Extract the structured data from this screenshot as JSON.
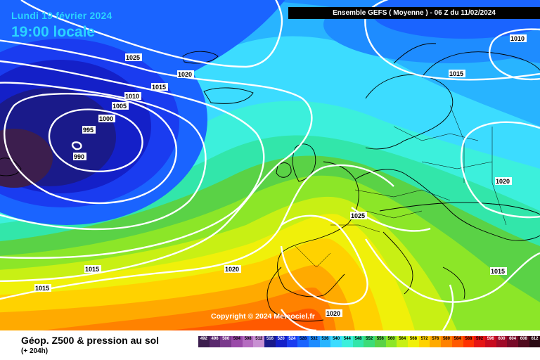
{
  "header": {
    "date": "Lundi 19 février 2024",
    "local_time": "19:00 locale",
    "model_run": "Ensemble GEFS  ( Moyenne )  -  06 Z du 11/02/2024"
  },
  "copyright": "Copyright © 2024 Meteociel.fr",
  "footer": {
    "field_title": "Géop. Z500 & pression au sol",
    "lead_time": "(+ 204h)"
  },
  "color_scale": [
    {
      "label": "492",
      "color": "#3c1e4e"
    },
    {
      "label": "496",
      "color": "#5a2a6e"
    },
    {
      "label": "500",
      "color": "#7a3a8c"
    },
    {
      "label": "504",
      "color": "#9a4aa8"
    },
    {
      "label": "508",
      "color": "#b56cc0"
    },
    {
      "label": "512",
      "color": "#c890d2"
    },
    {
      "label": "516",
      "color": "#1a1a8a"
    },
    {
      "label": "520",
      "color": "#1420c8"
    },
    {
      "label": "524",
      "color": "#1a3cf0"
    },
    {
      "label": "528",
      "color": "#1a64ff"
    },
    {
      "label": "532",
      "color": "#1e8cff"
    },
    {
      "label": "536",
      "color": "#28b4ff"
    },
    {
      "label": "540",
      "color": "#3cdcff"
    },
    {
      "label": "544",
      "color": "#3cf0dc"
    },
    {
      "label": "548",
      "color": "#32e6aa"
    },
    {
      "label": "552",
      "color": "#3cdc78"
    },
    {
      "label": "556",
      "color": "#5ad246"
    },
    {
      "label": "560",
      "color": "#8ce628"
    },
    {
      "label": "564",
      "color": "#c8f014"
    },
    {
      "label": "568",
      "color": "#f0f00a"
    },
    {
      "label": "572",
      "color": "#ffd200"
    },
    {
      "label": "576",
      "color": "#ffaa00"
    },
    {
      "label": "580",
      "color": "#ff8200"
    },
    {
      "label": "584",
      "color": "#ff5a00"
    },
    {
      "label": "588",
      "color": "#ff3200"
    },
    {
      "label": "592",
      "color": "#e61414"
    },
    {
      "label": "596",
      "color": "#c80a1e"
    },
    {
      "label": "600",
      "color": "#a00a28"
    },
    {
      "label": "604",
      "color": "#780a28"
    },
    {
      "label": "608",
      "color": "#500a1e"
    },
    {
      "label": "612",
      "color": "#2a0a14"
    }
  ],
  "isobar_labels": [
    "1025",
    "1020",
    "1015",
    "1010",
    "1005",
    "1000",
    "995",
    "990",
    "1010",
    "1015",
    "1020",
    "1025",
    "1015",
    "1020",
    "1015",
    "1015",
    "1020"
  ],
  "colors": {
    "low_center": "#1a3cf0",
    "high_center": "#ff8200",
    "isobar": "#ffffff",
    "coastline": "#000000"
  }
}
